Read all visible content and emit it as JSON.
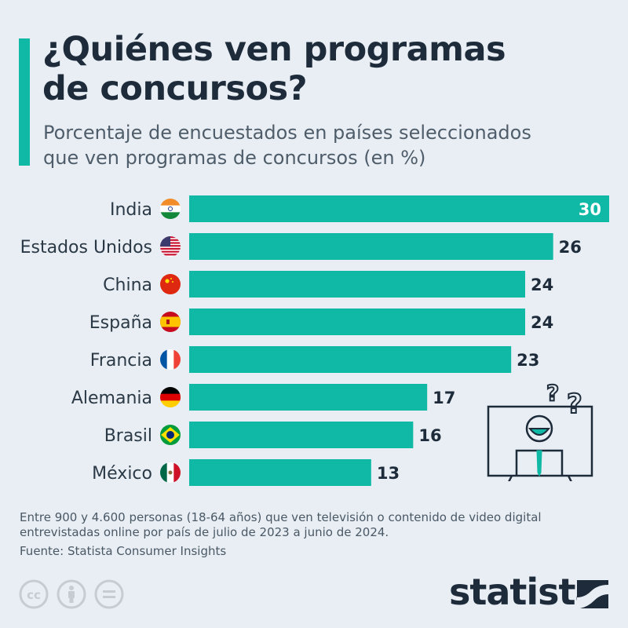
{
  "header": {
    "title_line1": "¿Quiénes ven programas",
    "title_line2": "de concursos?",
    "subtitle_line1": "Porcentaje de encuestados en países seleccionados",
    "subtitle_line2": "que ven programas de concursos (en %)"
  },
  "colors": {
    "bar": "#10b9a5",
    "accent": "#10b9a5",
    "text_dark": "#1d2b3a",
    "background": "#e8eef3"
  },
  "chart_data": {
    "type": "bar",
    "orientation": "horizontal",
    "title": "¿Quiénes ven programas de concursos?",
    "subtitle": "Porcentaje de encuestados en países seleccionados que ven programas de concursos (en %)",
    "categories": [
      "India",
      "Estados Unidos",
      "China",
      "España",
      "Francia",
      "Alemania",
      "Brasil",
      "México"
    ],
    "flags": [
      "india-flag-icon",
      "usa-flag-icon",
      "china-flag-icon",
      "spain-flag-icon",
      "france-flag-icon",
      "germany-flag-icon",
      "brazil-flag-icon",
      "mexico-flag-icon"
    ],
    "values": [
      30,
      26,
      24,
      24,
      23,
      17,
      16,
      13
    ],
    "xlim": [
      0,
      30
    ],
    "grid": false,
    "legend": "none"
  },
  "footer": {
    "note_line1": "Entre 900 y 4.600 personas (18-64 años) que ven televisión o contenido de video digital",
    "note_line2": "entrevistadas online por país de julio de 2023 a junio de 2024.",
    "source": "Fuente: Statista Consumer Insights",
    "brand": "statista"
  }
}
